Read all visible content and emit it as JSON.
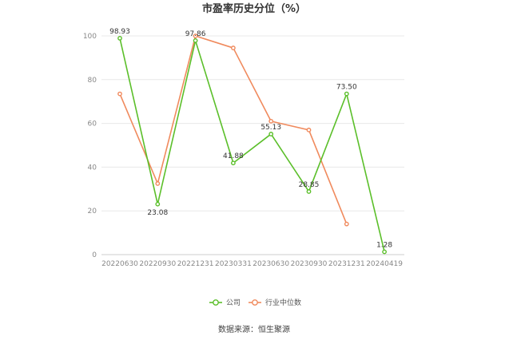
{
  "chart_data": {
    "type": "line",
    "title": "市盈率历史分位（%）",
    "categories": [
      "20220630",
      "20220930",
      "20221231",
      "20230331",
      "20230630",
      "20230930",
      "20231231",
      "20240419"
    ],
    "series": [
      {
        "name": "公司",
        "color": "#5bbf2a",
        "values": [
          98.93,
          23.08,
          97.86,
          41.88,
          55.13,
          28.85,
          73.5,
          1.28
        ],
        "labels": [
          "98.93",
          "23.08",
          "97.86",
          "41.88",
          "55.13",
          "28.85",
          "73.50",
          "1.28"
        ]
      },
      {
        "name": "行业中位数",
        "color": "#f08a5d",
        "values": [
          73.5,
          32.5,
          100,
          94.5,
          61,
          57,
          14,
          null
        ]
      }
    ],
    "ylim": [
      0,
      100
    ],
    "yticks": [
      0,
      20,
      40,
      60,
      80,
      100
    ],
    "grid": true,
    "legend": "bottom-center",
    "source": "数据来源：恒生聚源"
  }
}
